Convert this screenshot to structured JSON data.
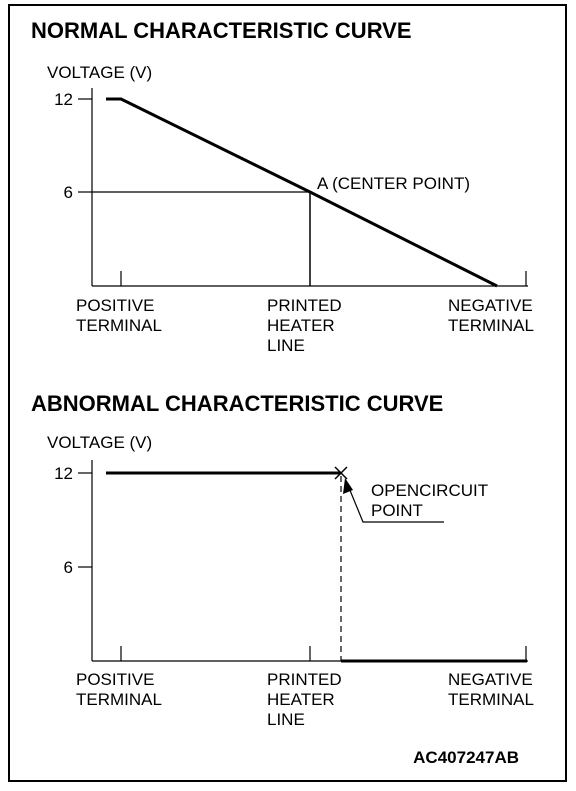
{
  "figure_code": "AC407247AB",
  "chart_data": [
    {
      "type": "line",
      "title": "NORMAL CHARACTERISTIC CURVE",
      "ylabel": "VOLTAGE (V)",
      "categories": [
        [
          "POSITIVE",
          "TERMINAL"
        ],
        [
          "PRINTED",
          "HEATER",
          "LINE"
        ],
        [
          "NEGATIVE",
          "TERMINAL"
        ]
      ],
      "x": [
        0,
        1,
        2
      ],
      "y": [
        12,
        6,
        0
      ],
      "yticks": [
        12,
        6
      ],
      "ylim": [
        0,
        12
      ],
      "annotations": [
        {
          "text": "A (CENTER POINT)",
          "x": 1,
          "y": 6
        }
      ]
    },
    {
      "type": "line",
      "title": "ABNORMAL CHARACTERISTIC CURVE",
      "ylabel": "VOLTAGE (V)",
      "categories": [
        [
          "POSITIVE",
          "TERMINAL"
        ],
        [
          "PRINTED",
          "HEATER",
          "LINE"
        ],
        [
          "NEGATIVE",
          "TERMINAL"
        ]
      ],
      "x": [
        0,
        1.17,
        1.17,
        2
      ],
      "y": [
        12,
        12,
        0,
        0
      ],
      "yticks": [
        12,
        6
      ],
      "ylim": [
        0,
        12
      ],
      "annotations": [
        {
          "text": [
            "OPENCIRCUIT",
            "POINT"
          ],
          "x": 1.17,
          "y": 12
        }
      ]
    }
  ]
}
